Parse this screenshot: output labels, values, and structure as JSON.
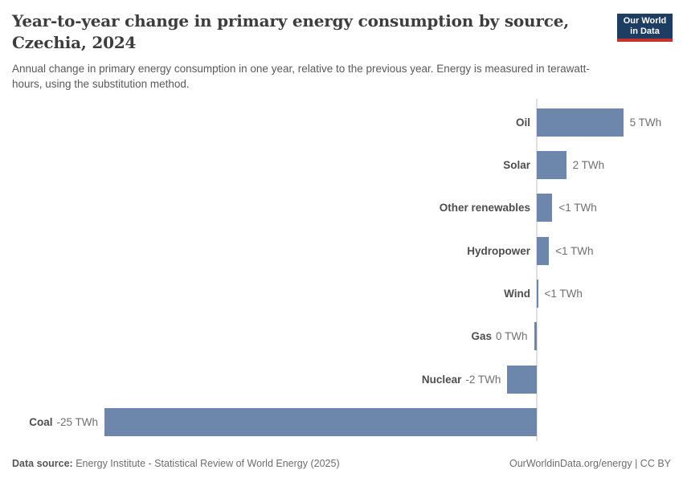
{
  "header": {
    "title_line1": "Year-to-year change in primary energy consumption by source,",
    "title_line2": "Czechia, 2024",
    "subtitle": "Annual change in primary energy consumption in one year, relative to the previous year. Energy is measured in terawatt-hours, using the substitution method.",
    "logo": {
      "line1": "Our World",
      "line2": "in Data",
      "bg_color": "#1d3d63",
      "accent_color": "#c5322d"
    }
  },
  "chart_data": {
    "type": "bar",
    "orientation": "horizontal",
    "title": "Year-to-year change in primary energy consumption by source, Czechia, 2024",
    "unit": "TWh",
    "categories": [
      "Oil",
      "Solar",
      "Other renewables",
      "Hydropower",
      "Wind",
      "Gas",
      "Nuclear",
      "Coal"
    ],
    "values": [
      5.0,
      1.7,
      0.9,
      0.7,
      0.07,
      -0.16,
      -1.7,
      -25.0
    ],
    "value_labels": [
      "5 TWh",
      "2 TWh",
      "<1 TWh",
      "<1 TWh",
      "<1 TWh",
      "0 TWh",
      "-2 TWh",
      "-25 TWh"
    ],
    "bar_color": "#6d87ac",
    "axis_color": "#e0e0e0",
    "baseline": 0,
    "grid": false,
    "legend": "none",
    "xlim": [
      -25,
      8
    ]
  },
  "footer": {
    "datasource_label": "Data source:",
    "datasource_value": "Energy Institute - Statistical Review of World Energy (2025)",
    "link": "OurWorldinData.org/energy | CC BY"
  }
}
